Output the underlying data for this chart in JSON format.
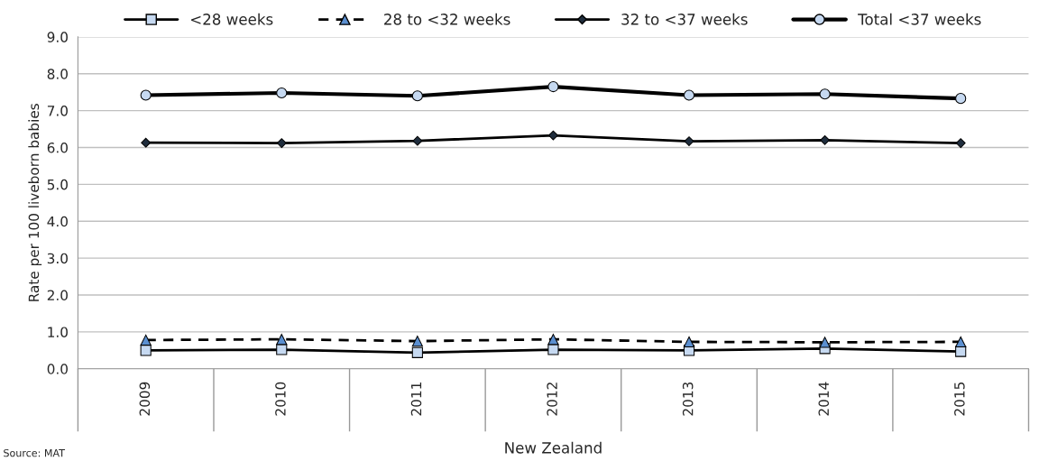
{
  "chart_data": {
    "type": "line",
    "ylabel": "Rate per 100 liveborn babies",
    "xlabel": "New Zealand",
    "categories": [
      "2009",
      "2010",
      "2011",
      "2012",
      "2013",
      "2014",
      "2015"
    ],
    "ylim": [
      0,
      9
    ],
    "yticks": [
      {
        "value": 0,
        "label": "0.0"
      },
      {
        "value": 1,
        "label": "1.0"
      },
      {
        "value": 2,
        "label": "2.0"
      },
      {
        "value": 3,
        "label": "3.0"
      },
      {
        "value": 4,
        "label": "4.0"
      },
      {
        "value": 5,
        "label": "5.0"
      },
      {
        "value": 6,
        "label": "6.0"
      },
      {
        "value": 7,
        "label": "7.0"
      },
      {
        "value": 8,
        "label": "8.0"
      },
      {
        "value": 9,
        "label": "9.0"
      }
    ],
    "grid": "y",
    "legend": "top",
    "annotations": [
      "Source: MAT"
    ],
    "series": [
      {
        "name": "<28 weeks",
        "color": "#000000",
        "marker": "square",
        "line_style": "solid",
        "values": [
          0.5,
          0.52,
          0.44,
          0.52,
          0.5,
          0.55,
          0.47
        ]
      },
      {
        "name": "28 to <32 weeks",
        "color": "#000000",
        "marker": "triangle",
        "line_style": "dashed",
        "values": [
          0.78,
          0.8,
          0.75,
          0.8,
          0.73,
          0.72,
          0.73
        ]
      },
      {
        "name": "32 to <37 weeks",
        "color": "#000000",
        "marker": "diamond",
        "line_style": "solid",
        "values": [
          6.13,
          6.12,
          6.18,
          6.33,
          6.17,
          6.2,
          6.12
        ]
      },
      {
        "name": "Total <37 weeks",
        "color": "#000000",
        "marker": "circle",
        "line_style": "solid",
        "values": [
          7.42,
          7.48,
          7.4,
          7.65,
          7.42,
          7.45,
          7.33
        ]
      }
    ]
  }
}
